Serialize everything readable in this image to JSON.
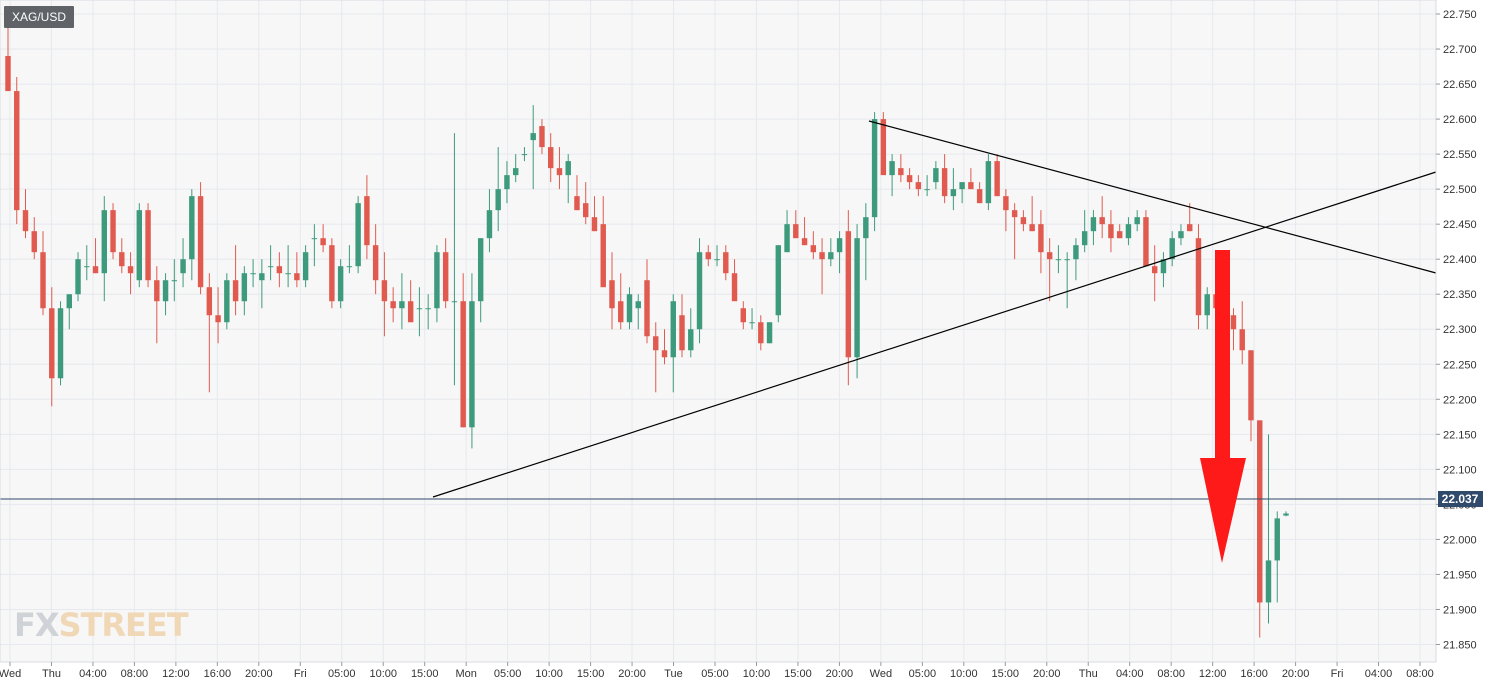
{
  "symbol": "XAG/USD",
  "logo_text": {
    "fx": "FX",
    "street": "STREET"
  },
  "colors": {
    "up": "#3e9a7c",
    "down": "#e05a4f",
    "grid": "#e6e9ee",
    "plot_bg": "#f7f7f7",
    "price_line": "#2f4a6b",
    "arrow": "#ff1a1a",
    "trend": "#000000"
  },
  "chart_data": {
    "type": "candlestick",
    "title": "",
    "xlabel": "",
    "ylabel": "",
    "ylim": [
      21.825,
      22.77
    ],
    "y_ticks": [
      22.75,
      22.7,
      22.65,
      22.6,
      22.55,
      22.5,
      22.45,
      22.4,
      22.35,
      22.3,
      22.25,
      22.2,
      22.15,
      22.1,
      22.05,
      22.0,
      21.95,
      21.9,
      21.85
    ],
    "last_price": 22.037,
    "x_ticks": [
      "Wed",
      "Thu",
      "04:00",
      "08:00",
      "12:00",
      "16:00",
      "20:00",
      "Fri",
      "05:00",
      "10:00",
      "15:00",
      "Mon",
      "05:00",
      "10:00",
      "15:00",
      "20:00",
      "Tue",
      "05:00",
      "10:00",
      "15:00",
      "20:00",
      "Wed",
      "05:00",
      "10:00",
      "15:00",
      "20:00",
      "Thu",
      "04:00",
      "08:00",
      "12:00",
      "16:00",
      "20:00",
      "Fri",
      "04:00",
      "08:00"
    ],
    "candles_ohlc": [
      [
        22.69,
        22.76,
        22.64,
        22.64
      ],
      [
        22.64,
        22.66,
        22.45,
        22.47
      ],
      [
        22.47,
        22.5,
        22.43,
        22.44
      ],
      [
        22.44,
        22.46,
        22.4,
        22.41
      ],
      [
        22.41,
        22.44,
        22.32,
        22.33
      ],
      [
        22.33,
        22.36,
        22.19,
        22.23
      ],
      [
        22.23,
        22.34,
        22.22,
        22.33
      ],
      [
        22.33,
        22.35,
        22.3,
        22.35
      ],
      [
        22.35,
        22.41,
        22.34,
        22.4
      ],
      [
        22.39,
        22.42,
        22.37,
        22.39
      ],
      [
        22.39,
        22.43,
        22.38,
        22.38
      ],
      [
        22.38,
        22.49,
        22.34,
        22.47
      ],
      [
        22.47,
        22.48,
        22.4,
        22.41
      ],
      [
        22.41,
        22.43,
        22.38,
        22.39
      ],
      [
        22.39,
        22.41,
        22.35,
        22.38
      ],
      [
        22.37,
        22.48,
        22.36,
        22.47
      ],
      [
        22.47,
        22.48,
        22.36,
        22.37
      ],
      [
        22.37,
        22.39,
        22.28,
        22.34
      ],
      [
        22.34,
        22.38,
        22.32,
        22.37
      ],
      [
        22.37,
        22.4,
        22.34,
        22.37
      ],
      [
        22.38,
        22.43,
        22.36,
        22.4
      ],
      [
        22.4,
        22.5,
        22.37,
        22.49
      ],
      [
        22.49,
        22.51,
        22.35,
        22.36
      ],
      [
        22.36,
        22.38,
        22.21,
        22.32
      ],
      [
        22.32,
        22.36,
        22.28,
        22.31
      ],
      [
        22.31,
        22.38,
        22.3,
        22.37
      ],
      [
        22.37,
        22.42,
        22.32,
        22.34
      ],
      [
        22.34,
        22.39,
        22.32,
        22.38
      ],
      [
        22.38,
        22.4,
        22.36,
        22.38
      ],
      [
        22.37,
        22.4,
        22.33,
        22.38
      ],
      [
        22.39,
        22.42,
        22.37,
        22.39
      ],
      [
        22.39,
        22.41,
        22.36,
        22.38
      ],
      [
        22.38,
        22.42,
        22.36,
        22.38
      ],
      [
        22.38,
        22.41,
        22.36,
        22.37
      ],
      [
        22.37,
        22.42,
        22.36,
        22.41
      ],
      [
        22.43,
        22.45,
        22.39,
        22.43
      ],
      [
        22.43,
        22.45,
        22.41,
        22.42
      ],
      [
        22.42,
        22.43,
        22.33,
        22.34
      ],
      [
        22.34,
        22.4,
        22.33,
        22.39
      ],
      [
        22.39,
        22.42,
        22.38,
        22.39
      ],
      [
        22.39,
        22.49,
        22.38,
        22.48
      ],
      [
        22.49,
        22.52,
        22.4,
        22.42
      ],
      [
        22.42,
        22.45,
        22.35,
        22.37
      ],
      [
        22.37,
        22.41,
        22.29,
        22.34
      ],
      [
        22.34,
        22.36,
        22.31,
        22.33
      ],
      [
        22.33,
        22.38,
        22.3,
        22.34
      ],
      [
        22.34,
        22.37,
        22.31,
        22.31
      ],
      [
        22.33,
        22.36,
        22.29,
        22.33
      ],
      [
        22.33,
        22.35,
        22.3,
        22.33
      ],
      [
        22.33,
        22.42,
        22.31,
        22.41
      ],
      [
        22.41,
        22.43,
        22.33,
        22.34
      ],
      [
        22.34,
        22.58,
        22.22,
        22.34
      ],
      [
        22.34,
        22.38,
        22.16,
        22.16
      ],
      [
        22.16,
        22.38,
        22.13,
        22.34
      ],
      [
        22.34,
        22.43,
        22.31,
        22.43
      ],
      [
        22.43,
        22.5,
        22.41,
        22.47
      ],
      [
        22.47,
        22.56,
        22.44,
        22.5
      ],
      [
        22.5,
        22.54,
        22.48,
        22.52
      ],
      [
        22.52,
        22.55,
        22.51,
        22.53
      ],
      [
        22.55,
        22.56,
        22.54,
        22.55
      ],
      [
        22.57,
        22.62,
        22.5,
        22.58
      ],
      [
        22.59,
        22.6,
        22.55,
        22.56
      ],
      [
        22.56,
        22.58,
        22.51,
        22.53
      ],
      [
        22.53,
        22.56,
        22.5,
        22.52
      ],
      [
        22.52,
        22.55,
        22.48,
        22.54
      ],
      [
        22.49,
        22.52,
        22.47,
        22.47
      ],
      [
        22.48,
        22.51,
        22.45,
        22.46
      ],
      [
        22.46,
        22.49,
        22.44,
        22.44
      ],
      [
        22.45,
        22.49,
        22.38,
        22.36
      ],
      [
        22.37,
        22.41,
        22.3,
        22.33
      ],
      [
        22.34,
        22.38,
        22.3,
        22.31
      ],
      [
        22.31,
        22.36,
        22.3,
        22.35
      ],
      [
        22.33,
        22.35,
        22.3,
        22.34
      ],
      [
        22.37,
        22.4,
        22.28,
        22.29
      ],
      [
        22.29,
        22.31,
        22.21,
        22.27
      ],
      [
        22.27,
        22.3,
        22.25,
        22.26
      ],
      [
        22.26,
        22.35,
        22.21,
        22.34
      ],
      [
        22.32,
        22.35,
        22.26,
        22.27
      ],
      [
        22.27,
        22.33,
        22.26,
        22.3
      ],
      [
        22.3,
        22.43,
        22.28,
        22.41
      ],
      [
        22.41,
        22.42,
        22.39,
        22.4
      ],
      [
        22.4,
        22.42,
        22.39,
        22.4
      ],
      [
        22.41,
        22.42,
        22.37,
        22.38
      ],
      [
        22.38,
        22.4,
        22.35,
        22.34
      ],
      [
        22.33,
        22.34,
        22.3,
        22.31
      ],
      [
        22.31,
        22.33,
        22.3,
        22.31
      ],
      [
        22.31,
        22.32,
        22.27,
        22.28
      ],
      [
        22.28,
        22.31,
        22.28,
        22.31
      ],
      [
        22.32,
        22.42,
        22.31,
        22.42
      ],
      [
        22.41,
        22.47,
        22.43,
        22.45
      ],
      [
        22.45,
        22.47,
        22.43,
        22.43
      ],
      [
        22.43,
        22.46,
        22.42,
        22.42
      ],
      [
        22.42,
        22.44,
        22.4,
        22.41
      ],
      [
        22.41,
        22.43,
        22.35,
        22.4
      ],
      [
        22.4,
        22.43,
        22.39,
        22.41
      ],
      [
        22.41,
        22.44,
        22.38,
        22.43
      ],
      [
        22.44,
        22.47,
        22.22,
        22.26
      ],
      [
        22.26,
        22.45,
        22.23,
        22.43
      ],
      [
        22.43,
        22.48,
        22.37,
        22.46
      ],
      [
        22.46,
        22.61,
        22.44,
        22.6
      ],
      [
        22.6,
        22.61,
        22.54,
        22.52
      ],
      [
        22.52,
        22.55,
        22.49,
        22.54
      ],
      [
        22.53,
        22.55,
        22.51,
        22.52
      ],
      [
        22.52,
        22.53,
        22.5,
        22.51
      ],
      [
        22.51,
        22.52,
        22.49,
        22.5
      ],
      [
        22.5,
        22.52,
        22.49,
        22.5
      ],
      [
        22.51,
        22.54,
        22.5,
        22.53
      ],
      [
        22.53,
        22.55,
        22.48,
        22.49
      ],
      [
        22.49,
        22.53,
        22.47,
        22.5
      ],
      [
        22.5,
        22.51,
        22.48,
        22.51
      ],
      [
        22.51,
        22.53,
        22.5,
        22.5
      ],
      [
        22.5,
        22.51,
        22.48,
        22.48
      ],
      [
        22.48,
        22.55,
        22.47,
        22.54
      ],
      [
        22.54,
        22.55,
        22.49,
        22.49
      ],
      [
        22.49,
        22.5,
        22.44,
        22.47
      ],
      [
        22.47,
        22.48,
        22.4,
        22.46
      ],
      [
        22.46,
        22.47,
        22.44,
        22.45
      ],
      [
        22.45,
        22.49,
        22.44,
        22.44
      ],
      [
        22.45,
        22.47,
        22.38,
        22.41
      ],
      [
        22.41,
        22.43,
        22.34,
        22.4
      ],
      [
        22.4,
        22.42,
        22.38,
        22.4
      ],
      [
        22.4,
        22.41,
        22.33,
        22.4
      ],
      [
        22.4,
        22.43,
        22.37,
        22.42
      ],
      [
        22.42,
        22.47,
        22.41,
        22.44
      ],
      [
        22.44,
        22.47,
        22.42,
        22.46
      ],
      [
        22.46,
        22.49,
        22.43,
        22.45
      ],
      [
        22.45,
        22.47,
        22.41,
        22.43
      ],
      [
        22.44,
        22.45,
        22.43,
        22.43
      ],
      [
        22.43,
        22.46,
        22.42,
        22.45
      ],
      [
        22.45,
        22.47,
        22.44,
        22.46
      ],
      [
        22.46,
        22.47,
        22.39,
        22.39
      ],
      [
        22.39,
        22.42,
        22.34,
        22.38
      ],
      [
        22.38,
        22.41,
        22.36,
        22.4
      ],
      [
        22.4,
        22.44,
        22.39,
        22.43
      ],
      [
        22.43,
        22.45,
        22.42,
        22.44
      ],
      [
        22.45,
        22.48,
        22.44,
        22.44
      ],
      [
        22.43,
        22.45,
        22.3,
        22.32
      ],
      [
        22.32,
        22.36,
        22.3,
        22.35
      ],
      [
        22.35,
        22.37,
        22.32,
        22.33
      ],
      [
        22.33,
        22.34,
        22.28,
        22.32
      ],
      [
        22.32,
        22.33,
        22.27,
        22.3
      ],
      [
        22.3,
        22.34,
        22.25,
        22.27
      ],
      [
        22.27,
        22.27,
        22.14,
        22.17
      ],
      [
        22.17,
        22.17,
        21.86,
        21.91
      ],
      [
        21.91,
        22.15,
        21.88,
        21.97
      ],
      [
        21.97,
        22.04,
        21.91,
        22.03
      ],
      [
        22.034,
        22.04,
        22.033,
        22.037
      ]
    ]
  }
}
